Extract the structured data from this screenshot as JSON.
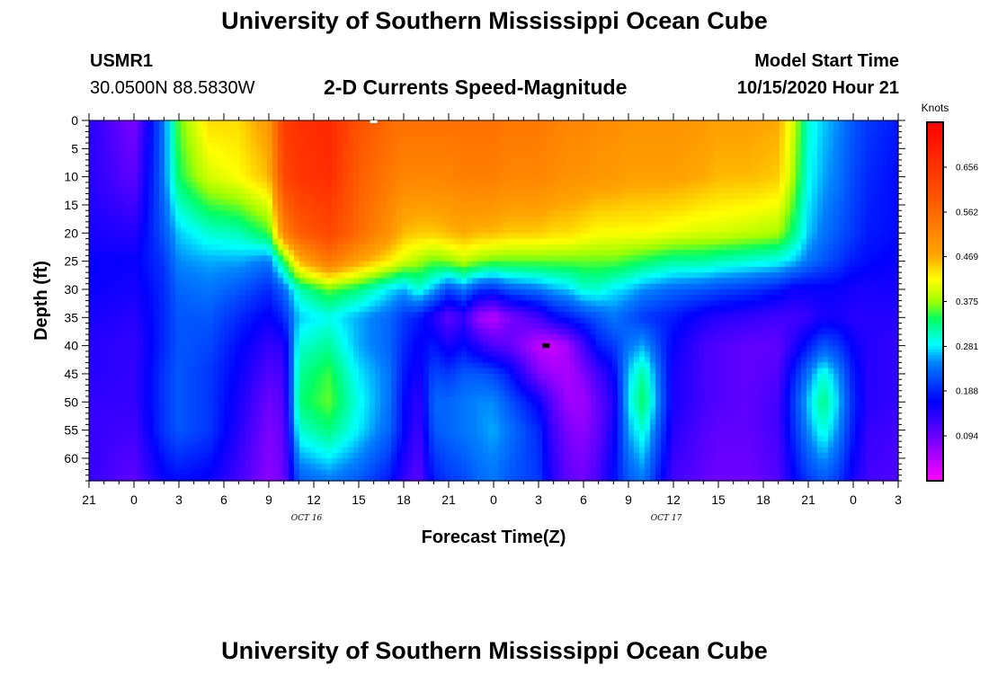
{
  "header": {
    "title": "University of Southern Mississippi Ocean Cube",
    "station": "USMR1",
    "coords": "30.0500N 88.5830W",
    "product": "2-D Currents Speed-Magnitude",
    "start_label": "Model Start Time",
    "start_value": "10/15/2020 Hour 21"
  },
  "footer": {
    "title": "University of Southern Mississippi Ocean Cube"
  },
  "chart_data": {
    "type": "heatmap",
    "title": "2-D Currents Speed-Magnitude",
    "xlabel": "Forecast Time(Z)",
    "ylabel": "Depth (ft)",
    "x_tick_labels": [
      "21",
      "0",
      "3",
      "6",
      "9",
      "12",
      "15",
      "18",
      "21",
      "0",
      "3",
      "6",
      "9",
      "12",
      "15",
      "18",
      "21",
      "0",
      "3"
    ],
    "x_hours": [
      0,
      3,
      6,
      9,
      12,
      15,
      18,
      21,
      24,
      27,
      30,
      33,
      36,
      39,
      42,
      45,
      48,
      51,
      54
    ],
    "date_labels": [
      {
        "label": "OCT 16",
        "hour": 15
      },
      {
        "label": "OCT 17",
        "hour": 39
      }
    ],
    "y_ticks": [
      0,
      5,
      10,
      15,
      20,
      25,
      30,
      35,
      40,
      45,
      50,
      55,
      60
    ],
    "ylim": [
      0,
      64
    ],
    "colorbar": {
      "title": "Knots",
      "ticks": [
        "0.656",
        "0.562",
        "0.469",
        "0.375",
        "0.281",
        "0.188",
        "0.094"
      ],
      "range": [
        0,
        0.75
      ]
    },
    "markers": [
      {
        "hour": 19,
        "depth": 0,
        "color": "#ffffff"
      },
      {
        "hour": 30.5,
        "depth": 40,
        "color": "#000000"
      }
    ],
    "columns_hours": [
      0,
      3,
      5,
      6,
      8,
      10,
      12,
      13,
      14,
      16,
      18,
      20,
      21,
      22,
      23,
      24,
      25,
      26,
      27,
      28,
      30,
      31,
      32,
      33,
      34,
      35,
      36,
      37,
      39,
      41,
      42,
      44,
      46,
      47,
      48,
      49,
      50,
      51,
      52,
      54
    ],
    "rows_depth": [
      0,
      10,
      20,
      25,
      30,
      35,
      40,
      45,
      50,
      55,
      64
    ],
    "speed_knots": [
      [
        0.14,
        0.14,
        0.15,
        0.16,
        0.16,
        0.15,
        0.14,
        0.14,
        0.13,
        0.13,
        0.13
      ],
      [
        0.08,
        0.1,
        0.14,
        0.16,
        0.15,
        0.14,
        0.13,
        0.13,
        0.13,
        0.12,
        0.1
      ],
      [
        0.24,
        0.24,
        0.22,
        0.2,
        0.19,
        0.19,
        0.19,
        0.2,
        0.2,
        0.2,
        0.16
      ],
      [
        0.36,
        0.34,
        0.27,
        0.25,
        0.23,
        0.22,
        0.22,
        0.22,
        0.22,
        0.22,
        0.17
      ],
      [
        0.44,
        0.4,
        0.3,
        0.26,
        0.24,
        0.22,
        0.21,
        0.2,
        0.2,
        0.2,
        0.16
      ],
      [
        0.44,
        0.42,
        0.31,
        0.26,
        0.22,
        0.19,
        0.17,
        0.16,
        0.15,
        0.14,
        0.12
      ],
      [
        0.49,
        0.46,
        0.35,
        0.24,
        0.19,
        0.16,
        0.13,
        0.11,
        0.09,
        0.08,
        0.07
      ],
      [
        0.64,
        0.62,
        0.52,
        0.34,
        0.23,
        0.19,
        0.14,
        0.12,
        0.11,
        0.1,
        0.09
      ],
      [
        0.66,
        0.65,
        0.58,
        0.46,
        0.31,
        0.27,
        0.3,
        0.32,
        0.33,
        0.3,
        0.22
      ],
      [
        0.68,
        0.67,
        0.62,
        0.54,
        0.36,
        0.29,
        0.32,
        0.35,
        0.36,
        0.33,
        0.24
      ],
      [
        0.6,
        0.58,
        0.56,
        0.48,
        0.33,
        0.26,
        0.26,
        0.28,
        0.29,
        0.28,
        0.22
      ],
      [
        0.56,
        0.54,
        0.5,
        0.43,
        0.28,
        0.23,
        0.23,
        0.24,
        0.24,
        0.23,
        0.18
      ],
      [
        0.55,
        0.52,
        0.46,
        0.4,
        0.26,
        0.2,
        0.19,
        0.18,
        0.17,
        0.17,
        0.13
      ],
      [
        0.55,
        0.52,
        0.45,
        0.38,
        0.3,
        0.18,
        0.16,
        0.15,
        0.13,
        0.12,
        0.1
      ],
      [
        0.55,
        0.52,
        0.45,
        0.36,
        0.26,
        0.14,
        0.18,
        0.21,
        0.23,
        0.22,
        0.18
      ],
      [
        0.55,
        0.52,
        0.46,
        0.37,
        0.21,
        0.1,
        0.15,
        0.2,
        0.23,
        0.23,
        0.2
      ],
      [
        0.55,
        0.53,
        0.47,
        0.39,
        0.24,
        0.13,
        0.17,
        0.22,
        0.24,
        0.24,
        0.21
      ],
      [
        0.55,
        0.53,
        0.46,
        0.37,
        0.2,
        0.06,
        0.14,
        0.22,
        0.25,
        0.25,
        0.23
      ],
      [
        0.55,
        0.53,
        0.46,
        0.36,
        0.19,
        0.04,
        0.11,
        0.21,
        0.25,
        0.26,
        0.24
      ],
      [
        0.54,
        0.52,
        0.45,
        0.36,
        0.22,
        0.08,
        0.1,
        0.18,
        0.22,
        0.24,
        0.22
      ],
      [
        0.54,
        0.52,
        0.45,
        0.36,
        0.24,
        0.12,
        0.04,
        0.08,
        0.16,
        0.19,
        0.2
      ],
      [
        0.53,
        0.51,
        0.44,
        0.36,
        0.26,
        0.16,
        0.03,
        0.06,
        0.1,
        0.12,
        0.14
      ],
      [
        0.52,
        0.5,
        0.44,
        0.36,
        0.27,
        0.18,
        0.06,
        0.05,
        0.06,
        0.08,
        0.1
      ],
      [
        0.52,
        0.5,
        0.43,
        0.36,
        0.3,
        0.2,
        0.12,
        0.08,
        0.06,
        0.07,
        0.09
      ],
      [
        0.51,
        0.49,
        0.42,
        0.36,
        0.3,
        0.22,
        0.18,
        0.12,
        0.1,
        0.1,
        0.12
      ],
      [
        0.51,
        0.49,
        0.42,
        0.36,
        0.28,
        0.24,
        0.2,
        0.16,
        0.14,
        0.15,
        0.17
      ],
      [
        0.5,
        0.48,
        0.42,
        0.35,
        0.27,
        0.22,
        0.24,
        0.27,
        0.28,
        0.26,
        0.22
      ],
      [
        0.5,
        0.48,
        0.42,
        0.34,
        0.25,
        0.2,
        0.26,
        0.32,
        0.34,
        0.3,
        0.24
      ],
      [
        0.5,
        0.48,
        0.41,
        0.32,
        0.23,
        0.18,
        0.16,
        0.15,
        0.15,
        0.14,
        0.12
      ],
      [
        0.49,
        0.47,
        0.4,
        0.32,
        0.22,
        0.15,
        0.12,
        0.12,
        0.12,
        0.11,
        0.1
      ],
      [
        0.48,
        0.46,
        0.4,
        0.31,
        0.21,
        0.14,
        0.11,
        0.11,
        0.11,
        0.1,
        0.09
      ],
      [
        0.48,
        0.46,
        0.39,
        0.3,
        0.2,
        0.13,
        0.1,
        0.1,
        0.1,
        0.1,
        0.09
      ],
      [
        0.47,
        0.45,
        0.38,
        0.29,
        0.18,
        0.12,
        0.1,
        0.11,
        0.12,
        0.12,
        0.11
      ],
      [
        0.4,
        0.38,
        0.33,
        0.27,
        0.16,
        0.12,
        0.14,
        0.18,
        0.2,
        0.19,
        0.16
      ],
      [
        0.3,
        0.29,
        0.27,
        0.24,
        0.16,
        0.13,
        0.18,
        0.24,
        0.27,
        0.25,
        0.2
      ],
      [
        0.27,
        0.26,
        0.24,
        0.22,
        0.16,
        0.15,
        0.22,
        0.3,
        0.33,
        0.3,
        0.22
      ],
      [
        0.25,
        0.24,
        0.22,
        0.2,
        0.16,
        0.15,
        0.2,
        0.25,
        0.27,
        0.25,
        0.2
      ],
      [
        0.22,
        0.21,
        0.2,
        0.18,
        0.15,
        0.14,
        0.16,
        0.18,
        0.19,
        0.18,
        0.15
      ],
      [
        0.2,
        0.19,
        0.18,
        0.17,
        0.15,
        0.14,
        0.14,
        0.14,
        0.14,
        0.13,
        0.12
      ],
      [
        0.18,
        0.17,
        0.17,
        0.16,
        0.15,
        0.14,
        0.13,
        0.13,
        0.13,
        0.12,
        0.11
      ]
    ]
  }
}
